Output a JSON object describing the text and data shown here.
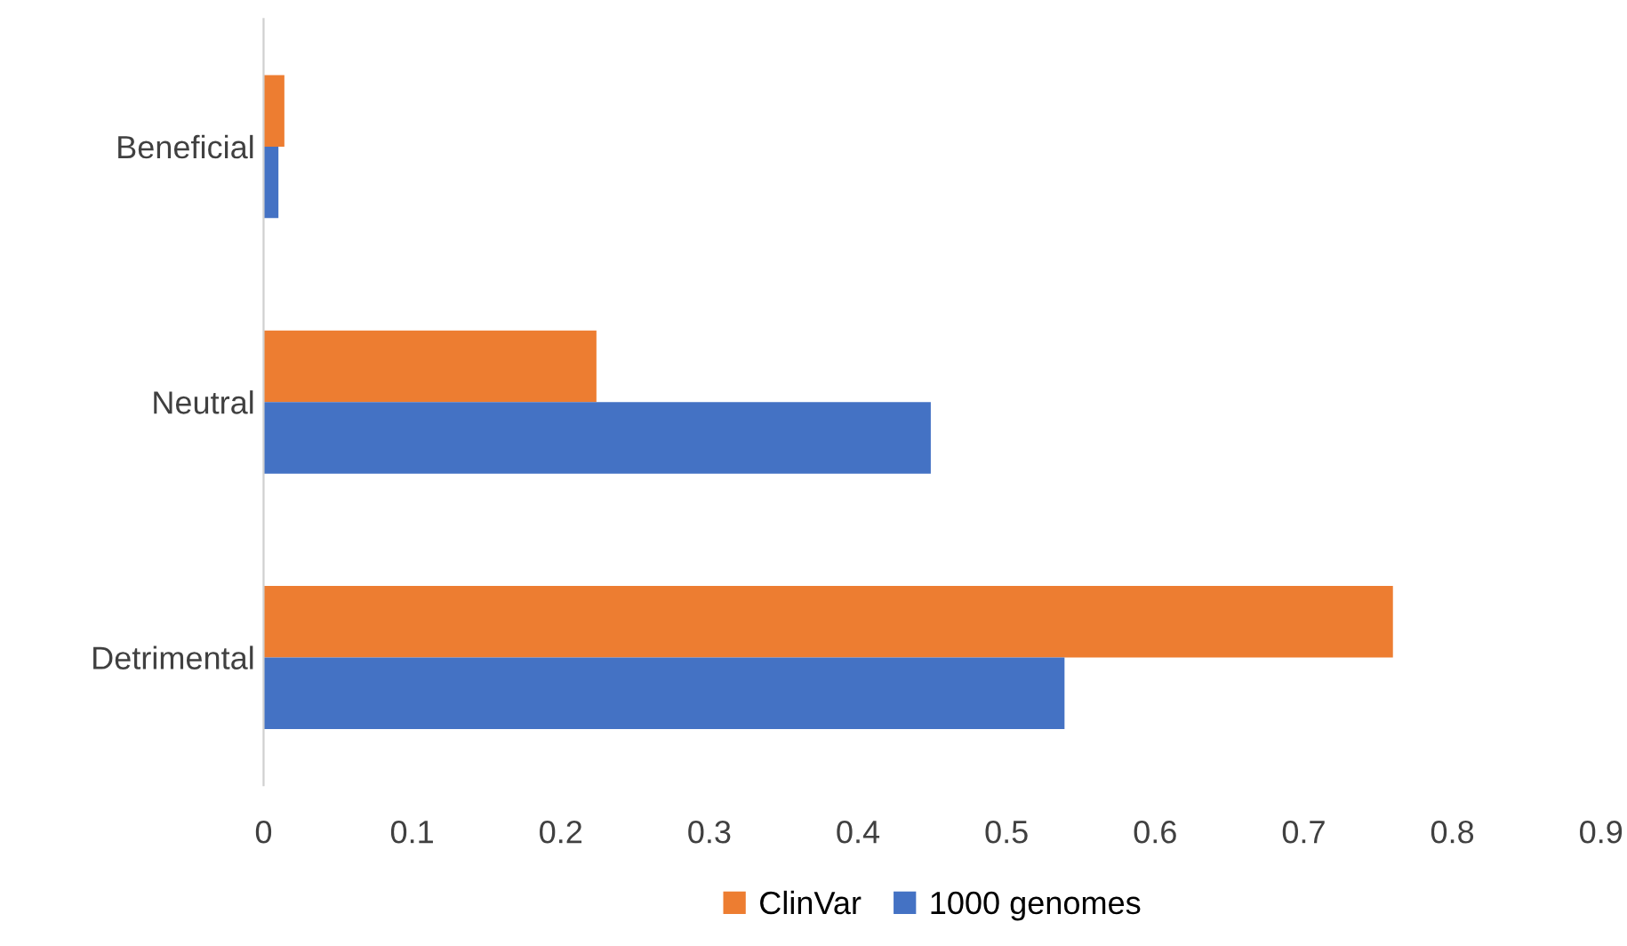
{
  "chart_data": {
    "type": "bar",
    "orientation": "horizontal",
    "categories": [
      "Beneficial",
      "Neutral",
      "Detrimental"
    ],
    "series": [
      {
        "name": "ClinVar",
        "color": "#ed7d31",
        "values": [
          0.014,
          0.224,
          0.76
        ]
      },
      {
        "name": "1000 genomes",
        "color": "#4472c4",
        "values": [
          0.01,
          0.449,
          0.539
        ]
      }
    ],
    "xlim": [
      0,
      0.9
    ],
    "xticks": [
      0,
      0.1,
      0.2,
      0.3,
      0.4,
      0.5,
      0.6,
      0.7,
      0.8,
      0.9
    ],
    "grid": false,
    "legend": "bottom"
  }
}
